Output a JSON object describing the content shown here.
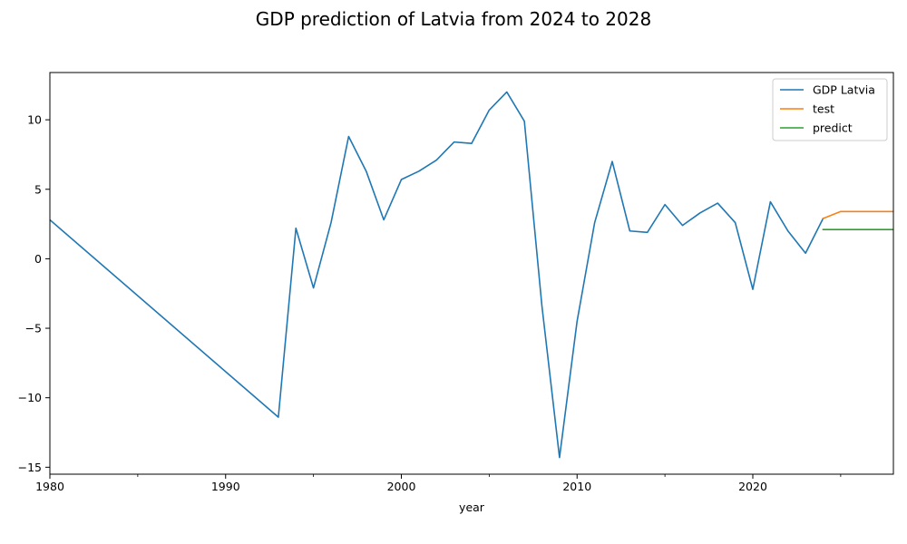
{
  "chart_data": {
    "type": "line",
    "title": "GDP prediction of Latvia from 2024 to 2028",
    "xlabel": "year",
    "ylabel": "",
    "xlim": [
      1980,
      2028
    ],
    "ylim": [
      -15.5,
      13.4
    ],
    "x_major_ticks": [
      1980,
      1990,
      2000,
      2010,
      2020
    ],
    "x_minor_ticks": [
      1985,
      1995,
      2005,
      2015,
      2025
    ],
    "y_ticks": [
      -15,
      -10,
      -5,
      0,
      5,
      10
    ],
    "grid": false,
    "legend_position": "top-right",
    "series": [
      {
        "name": "GDP Latvia",
        "color": "#1f77b4",
        "x": [
          1980,
          1993,
          1994,
          1995,
          1996,
          1997,
          1998,
          1999,
          2000,
          2001,
          2002,
          2003,
          2004,
          2005,
          2006,
          2007,
          2008,
          2009,
          2010,
          2011,
          2012,
          2013,
          2014,
          2015,
          2016,
          2017,
          2018,
          2019,
          2020,
          2021,
          2022,
          2023,
          2024
        ],
        "values": [
          2.8,
          -11.4,
          2.2,
          -2.1,
          2.6,
          8.8,
          6.3,
          2.8,
          5.7,
          6.3,
          7.1,
          8.4,
          8.3,
          10.7,
          12.0,
          9.9,
          -3.4,
          -14.3,
          -4.5,
          2.6,
          7.0,
          2.0,
          1.9,
          3.9,
          2.4,
          3.3,
          4.0,
          2.6,
          -2.2,
          4.1,
          2.0,
          0.4,
          2.9
        ]
      },
      {
        "name": "test",
        "color": "#ff7f0e",
        "x": [
          2024,
          2025,
          2026,
          2027,
          2028
        ],
        "values": [
          2.9,
          3.4,
          3.4,
          3.4,
          3.4
        ]
      },
      {
        "name": "predict",
        "color": "#2ca02c",
        "x": [
          2024,
          2025,
          2026,
          2027,
          2028
        ],
        "values": [
          2.1,
          2.1,
          2.1,
          2.1,
          2.1
        ]
      }
    ]
  }
}
